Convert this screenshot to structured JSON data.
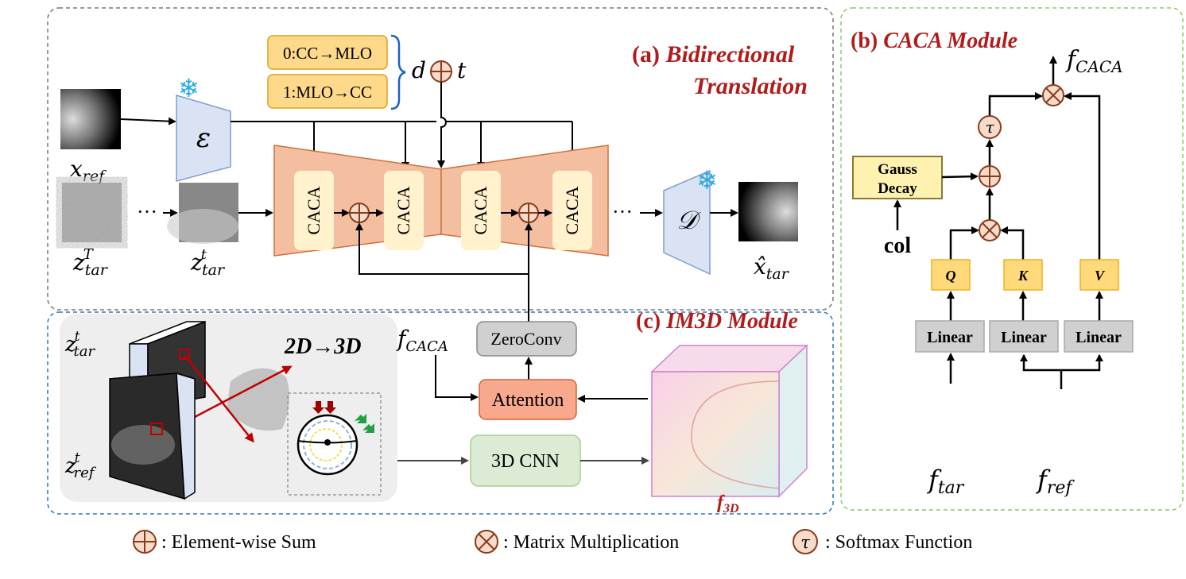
{
  "panel_a": {
    "title_prefix": "(a) ",
    "title_line1": "Bidirectional",
    "title_line2": "Translation",
    "conditions": [
      "0:CC→MLO",
      "1:MLO→CC"
    ],
    "cond_d": "d",
    "cond_t": "t",
    "encoder": "ε",
    "decoder": "𝒟",
    "caca_blocks": [
      "CACA",
      "CACA",
      "CACA",
      "CACA"
    ],
    "ellipsis": "···",
    "labels": {
      "x_ref": "x",
      "x_ref_sub": "ref",
      "z_T": "z",
      "z_T_sup": "T",
      "z_T_sub": "tar",
      "z_t": "z",
      "z_t_sup": "t",
      "z_t_sub": "tar",
      "x_hat": "x̂",
      "x_hat_sub": "tar"
    }
  },
  "panel_b": {
    "title_prefix": "(b) ",
    "title": "CACA Module",
    "output": "f",
    "output_sub": "CACA",
    "gauss_line1": "Gauss",
    "gauss_line2": "Decay",
    "col": "col",
    "tau": "τ",
    "qkv": [
      "Q",
      "K",
      "V"
    ],
    "linear": [
      "Linear",
      "Linear",
      "Linear"
    ],
    "f_tar": "f",
    "f_tar_sub": "tar",
    "f_ref": "f",
    "f_ref_sub": "ref"
  },
  "panel_c": {
    "title_prefix": "(c) ",
    "title": "IM3D Module",
    "z_tar": "z",
    "z_tar_sup": "t",
    "z_tar_sub": "tar",
    "z_ref": "z",
    "z_ref_sup": "t",
    "z_ref_sub": "ref",
    "projection": "2D→3D",
    "f_caca": "f",
    "f_caca_sub": "CACA",
    "zeroconv": "ZeroConv",
    "attention": "Attention",
    "cnn": "3D CNN",
    "f_3d": "f",
    "f_3d_sub": "3D"
  },
  "legend": [
    {
      "symbol": "⊕",
      "label": ": Element-wise Sum"
    },
    {
      "symbol": "⊗",
      "label": ": Matrix Multiplication"
    },
    {
      "symbol": "τ",
      "label": ": Softmax Function"
    }
  ],
  "colors": {
    "title_red": "#b01c1c",
    "unet_orange": "#f4bfa0",
    "caca_block": "#fff2cc",
    "encoder_blue": "#dae3f3",
    "cond_yellow": "#ffd98a",
    "attention": "#f8a98d",
    "cnn_green": "#dcecd4",
    "qkv": "#ffd97a",
    "linear_gray": "#d0d0d0",
    "gauss": "#fff2b0"
  }
}
